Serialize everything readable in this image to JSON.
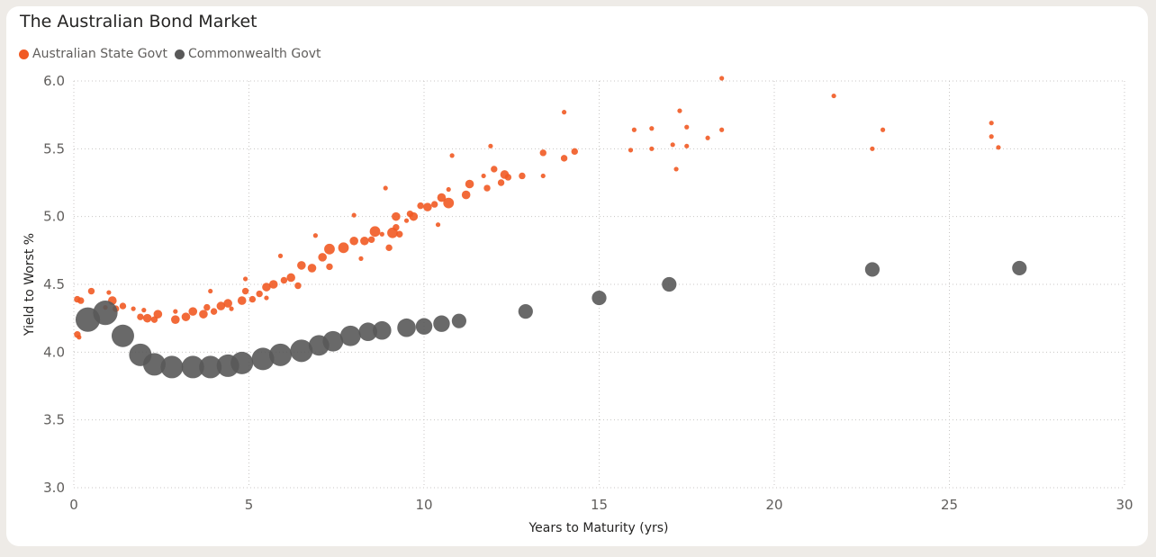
{
  "chart_data": {
    "type": "scatter",
    "title": "The Australian Bond Market",
    "xlabel": "Years to Maturity (yrs)",
    "ylabel": "Yield to Worst %",
    "xlim": [
      0,
      30
    ],
    "ylim": [
      3.0,
      6.0
    ],
    "xticks": [
      "0",
      "5",
      "10",
      "15",
      "20",
      "25",
      "30"
    ],
    "yticks": [
      "3.0",
      "3.5",
      "4.0",
      "4.5",
      "5.0",
      "5.5",
      "6.0"
    ],
    "grid": true,
    "legend_position": "top-left",
    "series": [
      {
        "name": "Australian State Govt",
        "color": "#f15a24",
        "points": [
          {
            "x": 0.1,
            "y": 4.39,
            "s": 2
          },
          {
            "x": 0.2,
            "y": 4.38,
            "s": 2
          },
          {
            "x": 0.1,
            "y": 4.13,
            "s": 2
          },
          {
            "x": 0.15,
            "y": 4.11,
            "s": 1
          },
          {
            "x": 0.5,
            "y": 4.45,
            "s": 2
          },
          {
            "x": 0.9,
            "y": 4.33,
            "s": 1
          },
          {
            "x": 1.0,
            "y": 4.44,
            "s": 1
          },
          {
            "x": 1.1,
            "y": 4.38,
            "s": 3
          },
          {
            "x": 1.2,
            "y": 4.32,
            "s": 2
          },
          {
            "x": 1.4,
            "y": 4.34,
            "s": 2
          },
          {
            "x": 1.7,
            "y": 4.32,
            "s": 1
          },
          {
            "x": 1.9,
            "y": 4.26,
            "s": 2
          },
          {
            "x": 2.0,
            "y": 4.31,
            "s": 1
          },
          {
            "x": 2.1,
            "y": 4.25,
            "s": 3
          },
          {
            "x": 2.3,
            "y": 4.24,
            "s": 2
          },
          {
            "x": 2.4,
            "y": 4.28,
            "s": 3
          },
          {
            "x": 2.9,
            "y": 4.3,
            "s": 1
          },
          {
            "x": 2.9,
            "y": 4.24,
            "s": 3
          },
          {
            "x": 3.2,
            "y": 4.26,
            "s": 3
          },
          {
            "x": 3.4,
            "y": 4.3,
            "s": 3
          },
          {
            "x": 3.7,
            "y": 4.28,
            "s": 3
          },
          {
            "x": 3.8,
            "y": 4.33,
            "s": 2
          },
          {
            "x": 3.9,
            "y": 4.45,
            "s": 1
          },
          {
            "x": 4.0,
            "y": 4.3,
            "s": 2
          },
          {
            "x": 4.2,
            "y": 4.34,
            "s": 3
          },
          {
            "x": 4.4,
            "y": 4.36,
            "s": 3
          },
          {
            "x": 4.5,
            "y": 4.32,
            "s": 1
          },
          {
            "x": 4.8,
            "y": 4.38,
            "s": 3
          },
          {
            "x": 4.9,
            "y": 4.45,
            "s": 2
          },
          {
            "x": 4.9,
            "y": 4.54,
            "s": 1
          },
          {
            "x": 5.1,
            "y": 4.39,
            "s": 2
          },
          {
            "x": 5.3,
            "y": 4.43,
            "s": 2
          },
          {
            "x": 5.5,
            "y": 4.48,
            "s": 3
          },
          {
            "x": 5.5,
            "y": 4.4,
            "s": 1
          },
          {
            "x": 5.7,
            "y": 4.5,
            "s": 3
          },
          {
            "x": 5.9,
            "y": 4.71,
            "s": 1
          },
          {
            "x": 6.0,
            "y": 4.53,
            "s": 2
          },
          {
            "x": 6.2,
            "y": 4.55,
            "s": 3
          },
          {
            "x": 6.4,
            "y": 4.49,
            "s": 2
          },
          {
            "x": 6.5,
            "y": 4.64,
            "s": 3
          },
          {
            "x": 6.8,
            "y": 4.62,
            "s": 3
          },
          {
            "x": 6.9,
            "y": 4.86,
            "s": 1
          },
          {
            "x": 7.1,
            "y": 4.7,
            "s": 3
          },
          {
            "x": 7.3,
            "y": 4.76,
            "s": 4
          },
          {
            "x": 7.3,
            "y": 4.63,
            "s": 2
          },
          {
            "x": 7.7,
            "y": 4.77,
            "s": 4
          },
          {
            "x": 8.0,
            "y": 4.82,
            "s": 3
          },
          {
            "x": 8.0,
            "y": 5.01,
            "s": 1
          },
          {
            "x": 8.2,
            "y": 4.69,
            "s": 1
          },
          {
            "x": 8.3,
            "y": 4.82,
            "s": 3
          },
          {
            "x": 8.5,
            "y": 4.83,
            "s": 2
          },
          {
            "x": 8.6,
            "y": 4.89,
            "s": 4
          },
          {
            "x": 8.8,
            "y": 4.87,
            "s": 1
          },
          {
            "x": 8.9,
            "y": 5.21,
            "s": 1
          },
          {
            "x": 9.0,
            "y": 4.77,
            "s": 2
          },
          {
            "x": 9.1,
            "y": 4.88,
            "s": 4
          },
          {
            "x": 9.2,
            "y": 4.92,
            "s": 2
          },
          {
            "x": 9.2,
            "y": 5.0,
            "s": 3
          },
          {
            "x": 9.3,
            "y": 4.87,
            "s": 2
          },
          {
            "x": 9.5,
            "y": 4.97,
            "s": 1
          },
          {
            "x": 9.6,
            "y": 5.02,
            "s": 2
          },
          {
            "x": 9.7,
            "y": 5.0,
            "s": 3
          },
          {
            "x": 9.9,
            "y": 5.08,
            "s": 2
          },
          {
            "x": 10.1,
            "y": 5.07,
            "s": 3
          },
          {
            "x": 10.3,
            "y": 5.09,
            "s": 2
          },
          {
            "x": 10.4,
            "y": 4.94,
            "s": 1
          },
          {
            "x": 10.5,
            "y": 5.14,
            "s": 3
          },
          {
            "x": 10.7,
            "y": 5.2,
            "s": 1
          },
          {
            "x": 10.7,
            "y": 5.1,
            "s": 4
          },
          {
            "x": 10.8,
            "y": 5.45,
            "s": 1
          },
          {
            "x": 11.2,
            "y": 5.16,
            "s": 3
          },
          {
            "x": 11.3,
            "y": 5.24,
            "s": 3
          },
          {
            "x": 11.7,
            "y": 5.3,
            "s": 1
          },
          {
            "x": 11.8,
            "y": 5.21,
            "s": 2
          },
          {
            "x": 11.9,
            "y": 5.52,
            "s": 1
          },
          {
            "x": 12.0,
            "y": 5.35,
            "s": 2
          },
          {
            "x": 12.2,
            "y": 5.25,
            "s": 2
          },
          {
            "x": 12.3,
            "y": 5.31,
            "s": 3
          },
          {
            "x": 12.4,
            "y": 5.29,
            "s": 2
          },
          {
            "x": 12.8,
            "y": 5.3,
            "s": 2
          },
          {
            "x": 13.4,
            "y": 5.47,
            "s": 2
          },
          {
            "x": 13.4,
            "y": 5.3,
            "s": 1
          },
          {
            "x": 14.0,
            "y": 5.77,
            "s": 1
          },
          {
            "x": 14.0,
            "y": 5.43,
            "s": 2
          },
          {
            "x": 14.3,
            "y": 5.48,
            "s": 2
          },
          {
            "x": 15.9,
            "y": 5.49,
            "s": 1
          },
          {
            "x": 16.0,
            "y": 5.64,
            "s": 1
          },
          {
            "x": 16.5,
            "y": 5.65,
            "s": 1
          },
          {
            "x": 16.5,
            "y": 5.5,
            "s": 1
          },
          {
            "x": 17.1,
            "y": 5.53,
            "s": 1
          },
          {
            "x": 17.2,
            "y": 5.35,
            "s": 1
          },
          {
            "x": 17.3,
            "y": 5.78,
            "s": 1
          },
          {
            "x": 17.5,
            "y": 5.66,
            "s": 1
          },
          {
            "x": 17.5,
            "y": 5.52,
            "s": 1
          },
          {
            "x": 18.1,
            "y": 5.58,
            "s": 1
          },
          {
            "x": 18.5,
            "y": 6.02,
            "s": 1
          },
          {
            "x": 18.5,
            "y": 5.64,
            "s": 1
          },
          {
            "x": 21.7,
            "y": 5.89,
            "s": 1
          },
          {
            "x": 22.8,
            "y": 5.5,
            "s": 1
          },
          {
            "x": 23.1,
            "y": 5.64,
            "s": 1
          },
          {
            "x": 26.2,
            "y": 5.69,
            "s": 1
          },
          {
            "x": 26.2,
            "y": 5.59,
            "s": 1
          },
          {
            "x": 26.4,
            "y": 5.51,
            "s": 1
          }
        ]
      },
      {
        "name": "Commonwealth Govt",
        "color": "#595959",
        "points": [
          {
            "x": 0.4,
            "y": 4.24,
            "s": 11
          },
          {
            "x": 0.9,
            "y": 4.29,
            "s": 11
          },
          {
            "x": 1.4,
            "y": 4.12,
            "s": 10
          },
          {
            "x": 1.9,
            "y": 3.98,
            "s": 10
          },
          {
            "x": 2.3,
            "y": 3.91,
            "s": 10
          },
          {
            "x": 2.8,
            "y": 3.89,
            "s": 10
          },
          {
            "x": 3.4,
            "y": 3.89,
            "s": 10
          },
          {
            "x": 3.9,
            "y": 3.89,
            "s": 10
          },
          {
            "x": 4.4,
            "y": 3.9,
            "s": 10
          },
          {
            "x": 4.8,
            "y": 3.92,
            "s": 10
          },
          {
            "x": 5.4,
            "y": 3.95,
            "s": 10
          },
          {
            "x": 5.9,
            "y": 3.98,
            "s": 10
          },
          {
            "x": 6.5,
            "y": 4.01,
            "s": 10
          },
          {
            "x": 7.0,
            "y": 4.05,
            "s": 9
          },
          {
            "x": 7.4,
            "y": 4.08,
            "s": 9
          },
          {
            "x": 7.9,
            "y": 4.12,
            "s": 9
          },
          {
            "x": 8.4,
            "y": 4.15,
            "s": 8
          },
          {
            "x": 8.8,
            "y": 4.16,
            "s": 8
          },
          {
            "x": 9.5,
            "y": 4.18,
            "s": 8
          },
          {
            "x": 10.0,
            "y": 4.19,
            "s": 7
          },
          {
            "x": 10.5,
            "y": 4.21,
            "s": 7
          },
          {
            "x": 11.0,
            "y": 4.23,
            "s": 6
          },
          {
            "x": 12.9,
            "y": 4.3,
            "s": 6
          },
          {
            "x": 15.0,
            "y": 4.4,
            "s": 6
          },
          {
            "x": 17.0,
            "y": 4.5,
            "s": 6
          },
          {
            "x": 22.8,
            "y": 4.61,
            "s": 6
          },
          {
            "x": 27.0,
            "y": 4.62,
            "s": 6
          }
        ]
      }
    ]
  }
}
